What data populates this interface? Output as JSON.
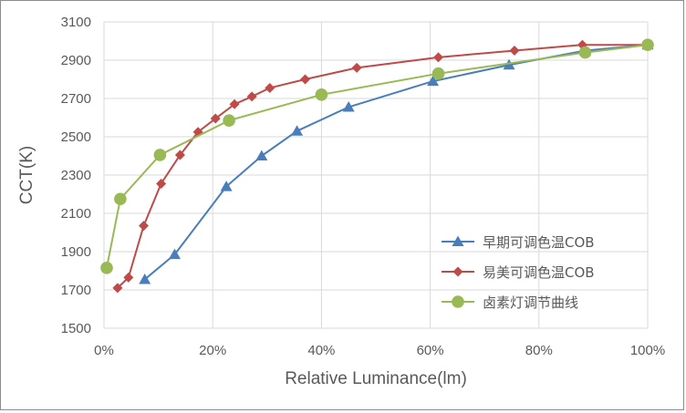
{
  "chart_data": {
    "type": "line",
    "xlabel": "Relative Luminance(lm)",
    "ylabel": "CCT(K)",
    "xlim": [
      0,
      100
    ],
    "ylim": [
      1500,
      3100
    ],
    "x_ticks": [
      "0%",
      "20%",
      "40%",
      "60%",
      "80%",
      "100%"
    ],
    "y_ticks": [
      "1500",
      "1700",
      "1900",
      "2100",
      "2300",
      "2500",
      "2700",
      "2900",
      "3100"
    ],
    "grid": "vertical-and-horizontal",
    "legend_position": "bottom-right",
    "series": [
      {
        "name": "早期可调色温COB",
        "color": "#4a7ebb",
        "marker": "triangle",
        "x": [
          7.5,
          13,
          22.5,
          29,
          35.5,
          45,
          60.5,
          74.5,
          88.5,
          100
        ],
        "y": [
          1755,
          1885,
          2240,
          2400,
          2530,
          2655,
          2790,
          2875,
          2950,
          2980
        ]
      },
      {
        "name": "易美可调色温COB",
        "color": "#be4b48",
        "marker": "diamond",
        "x": [
          2.5,
          4.5,
          7.3,
          10.5,
          14,
          17.3,
          20.5,
          24,
          27.2,
          30.5,
          37,
          46.5,
          61.5,
          75.5,
          88,
          100
        ],
        "y": [
          1710,
          1765,
          2035,
          2255,
          2405,
          2525,
          2595,
          2670,
          2710,
          2755,
          2800,
          2860,
          2915,
          2950,
          2980,
          2980
        ]
      },
      {
        "name": "卤素灯调节曲线",
        "color": "#98b954",
        "marker": "circle",
        "x": [
          0.5,
          3,
          10.3,
          23,
          40,
          61.5,
          88.5,
          100
        ],
        "y": [
          1815,
          2175,
          2405,
          2585,
          2720,
          2830,
          2940,
          2980
        ]
      }
    ]
  }
}
